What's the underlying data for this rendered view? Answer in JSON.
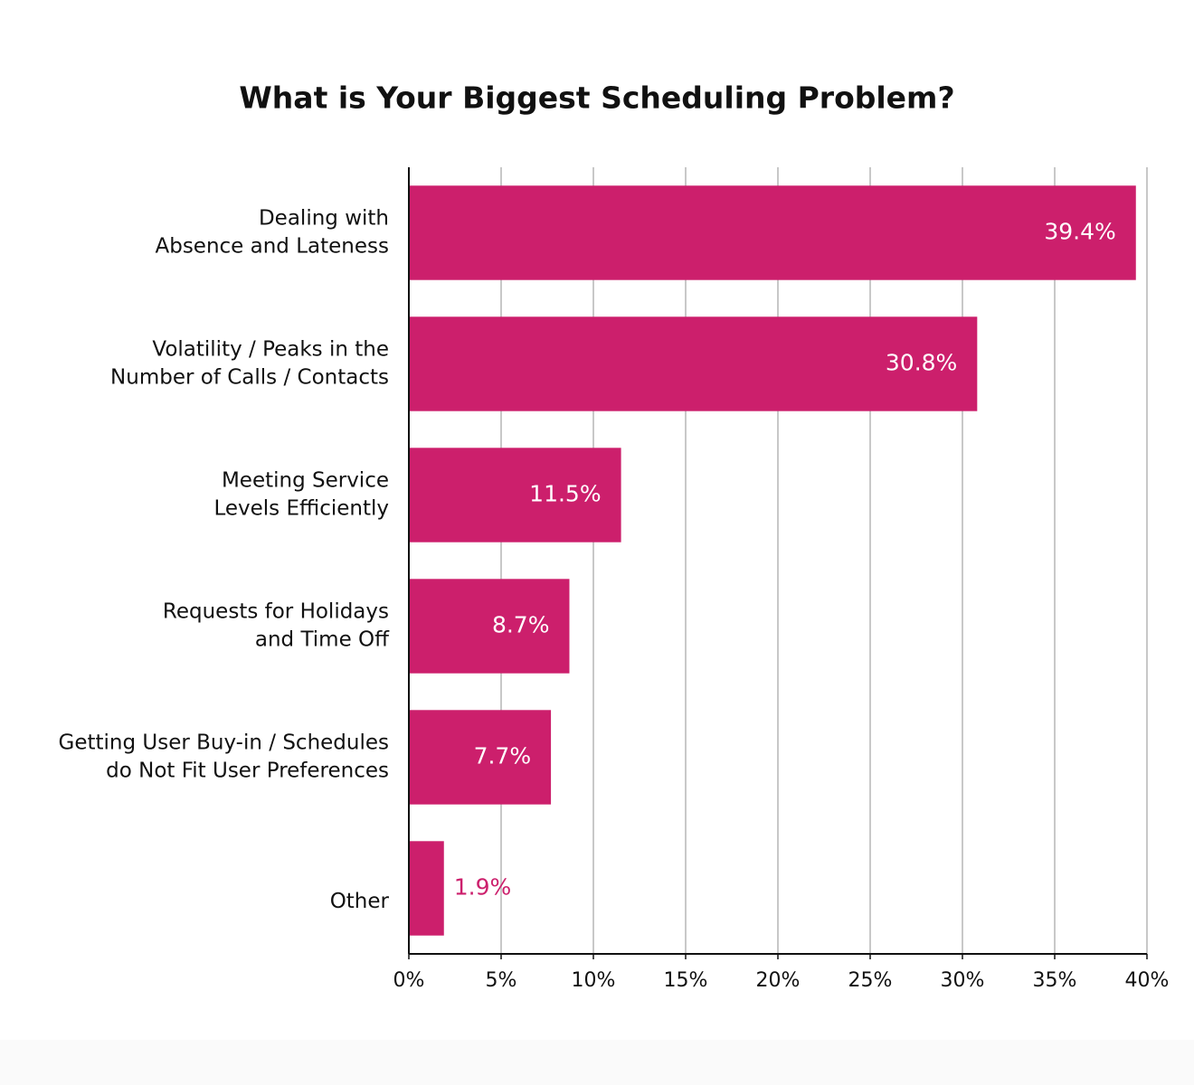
{
  "chart_data": {
    "type": "hbar",
    "title": "What is Your Biggest Scheduling Problem?",
    "categories": [
      [
        "Dealing with",
        "Absence and Lateness"
      ],
      [
        "Volatility / Peaks in the",
        "Number of Calls / Contacts"
      ],
      [
        "Meeting Service",
        "Levels Efficiently"
      ],
      [
        "Requests for Holidays",
        "and Time Off"
      ],
      [
        "Getting User Buy-in / Schedules",
        "do Not Fit User Preferences"
      ],
      [
        "Other"
      ]
    ],
    "values": [
      39.4,
      30.8,
      11.5,
      8.7,
      7.7,
      1.9
    ],
    "value_labels": [
      "39.4%",
      "30.8%",
      "11.5%",
      "8.7%",
      "7.7%",
      "1.9%"
    ],
    "color": "#cc1f6c",
    "xlim": [
      0,
      40
    ],
    "xticks": [
      {
        "value": 0,
        "label": "0%"
      },
      {
        "value": 5,
        "label": "5%"
      },
      {
        "value": 10,
        "label": "10%"
      },
      {
        "value": 15,
        "label": "15%"
      },
      {
        "value": 20,
        "label": "20%"
      },
      {
        "value": 25,
        "label": "25%"
      },
      {
        "value": 30,
        "label": "30%"
      },
      {
        "value": 35,
        "label": "35%"
      },
      {
        "value": 40,
        "label": "40%"
      }
    ],
    "grid": true
  }
}
